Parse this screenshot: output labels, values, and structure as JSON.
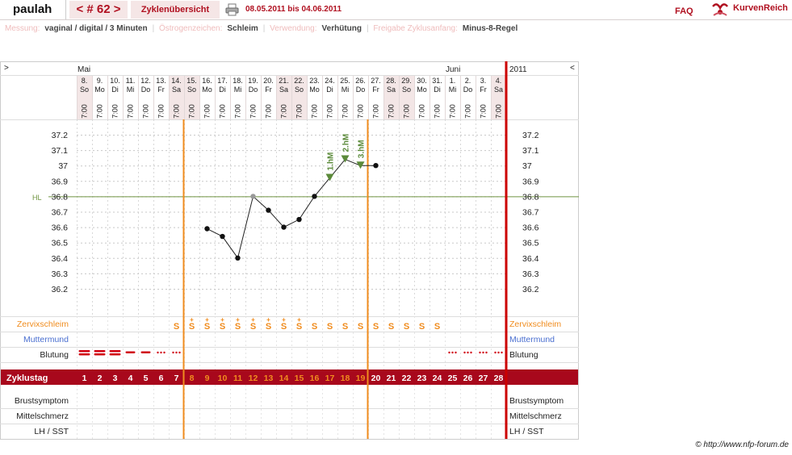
{
  "header": {
    "user": "paulah",
    "cycle_nav": "< # 62 >",
    "overview_label": "Zyklenübersicht",
    "date_range": "08.05.2011 bis 04.06.2011",
    "faq": "FAQ",
    "logo_text": "KurvenReich"
  },
  "settings": [
    {
      "label": "Messung:",
      "value": "vaginal / digital / 3 Minuten"
    },
    {
      "label": "Östrogenzeichen:",
      "value": "Schleim"
    },
    {
      "label": "Verwendung:",
      "value": "Verhütung"
    },
    {
      "label": "Freigabe Zyklusanfang:",
      "value": "Minus-8-Regel"
    }
  ],
  "chart_data": {
    "type": "line",
    "nav_left": ">",
    "nav_right": "<",
    "months": [
      {
        "label": "Mai",
        "day_index": 0
      },
      {
        "label": "Juni",
        "day_index": 24
      }
    ],
    "year": "2011",
    "dates": [
      "8.",
      "9.",
      "10.",
      "11.",
      "12.",
      "13.",
      "14.",
      "15.",
      "16.",
      "17.",
      "18.",
      "19.",
      "20.",
      "21.",
      "22.",
      "23.",
      "24.",
      "25.",
      "26.",
      "27.",
      "28.",
      "29.",
      "30.",
      "31.",
      "1.",
      "2.",
      "3.",
      "4."
    ],
    "weekdays": [
      "So",
      "Mo",
      "Di",
      "Mi",
      "Do",
      "Fr",
      "Sa",
      "So",
      "Mo",
      "Di",
      "Mi",
      "Do",
      "Fr",
      "Sa",
      "So",
      "Mo",
      "Di",
      "Mi",
      "Do",
      "Fr",
      "Sa",
      "So",
      "Mo",
      "Di",
      "Mi",
      "Do",
      "Fr",
      "Sa"
    ],
    "times": [
      "7:00",
      "7:00",
      "7:00",
      "7:00",
      "7:00",
      "7:00",
      "7:00",
      "7:00",
      "7:00",
      "7:00",
      "7:00",
      "7:00",
      "7:00",
      "7:00",
      "7:00",
      "7:00",
      "7:00",
      "7:00",
      "7:00",
      "7:00",
      "7:00",
      "7:00",
      "7:00",
      "7:00",
      "7:00",
      "7:00",
      "7:00",
      "7:00"
    ],
    "y_ticks": [
      "37.2",
      "37.1",
      "37",
      "36.9",
      "36.8",
      "36.7",
      "36.6",
      "36.5",
      "36.4",
      "36.3",
      "36.2"
    ],
    "ylim": [
      36.1,
      37.3
    ],
    "coverline": {
      "label": "HL",
      "value": 36.8
    },
    "temperatures": [
      {
        "day": 9,
        "value": 36.59
      },
      {
        "day": 10,
        "value": 36.54
      },
      {
        "day": 11,
        "value": 36.4
      },
      {
        "day": 12,
        "value": 36.8,
        "excluded": true
      },
      {
        "day": 13,
        "value": 36.71
      },
      {
        "day": 14,
        "value": 36.6
      },
      {
        "day": 15,
        "value": 36.65
      },
      {
        "day": 16,
        "value": 36.8
      },
      {
        "day": 17,
        "value": 36.92,
        "marker": "1.hM"
      },
      {
        "day": 18,
        "value": 37.04,
        "marker": "2.hM"
      },
      {
        "day": 19,
        "value": 37.0,
        "marker": "3.hM"
      },
      {
        "day": 20,
        "value": 37.0
      }
    ],
    "vertical_lines": [
      {
        "after_day": 7
      },
      {
        "after_day": 19
      }
    ],
    "rows": {
      "zervixschleim": "Zervixschleim",
      "muttermund": "Muttermund",
      "blutung": "Blutung",
      "zyklustag": "Zyklustag",
      "brustsymptom": "Brustsymptom",
      "mittelschmerz": "Mittelschmerz",
      "lh_sst": "LH / SST"
    },
    "mucus": [
      {
        "day": 7,
        "symbol": "S"
      },
      {
        "day": 8,
        "symbol": "S+"
      },
      {
        "day": 9,
        "symbol": "S+"
      },
      {
        "day": 10,
        "symbol": "S+"
      },
      {
        "day": 11,
        "symbol": "S+"
      },
      {
        "day": 12,
        "symbol": "S+"
      },
      {
        "day": 13,
        "symbol": "S+"
      },
      {
        "day": 14,
        "symbol": "S+"
      },
      {
        "day": 15,
        "symbol": "S+"
      },
      {
        "day": 16,
        "symbol": "S"
      },
      {
        "day": 17,
        "symbol": "S"
      },
      {
        "day": 18,
        "symbol": "S"
      },
      {
        "day": 19,
        "symbol": "S"
      },
      {
        "day": 20,
        "symbol": "S"
      },
      {
        "day": 21,
        "symbol": "S"
      },
      {
        "day": 22,
        "symbol": "S"
      },
      {
        "day": 23,
        "symbol": "S"
      },
      {
        "day": 24,
        "symbol": "S"
      }
    ],
    "bleeding": [
      {
        "day": 1,
        "level": "heavy"
      },
      {
        "day": 2,
        "level": "heavy"
      },
      {
        "day": 3,
        "level": "heavy"
      },
      {
        "day": 4,
        "level": "medium"
      },
      {
        "day": 5,
        "level": "medium"
      },
      {
        "day": 6,
        "level": "spotting"
      },
      {
        "day": 7,
        "level": "spotting"
      },
      {
        "day": 25,
        "level": "spotting"
      },
      {
        "day": 26,
        "level": "spotting"
      },
      {
        "day": 27,
        "level": "spotting"
      },
      {
        "day": 28,
        "level": "spotting"
      }
    ],
    "cycle_days": [
      "1",
      "2",
      "3",
      "4",
      "5",
      "6",
      "7",
      "8",
      "9",
      "10",
      "11",
      "12",
      "13",
      "14",
      "15",
      "16",
      "17",
      "18",
      "19",
      "20",
      "21",
      "22",
      "23",
      "24",
      "25",
      "26",
      "27",
      "28"
    ],
    "highlight_days": [
      8,
      19
    ],
    "colors": {
      "accent": "#b01020",
      "orange": "#f08c1e",
      "coverline": "#6f9440",
      "hm_marker": "#5b8a3a",
      "muttermund": "#4a6fd0",
      "weekend": "#f3e6e6",
      "grid": "#c8c8c8"
    }
  },
  "footer": {
    "copyright": "© http://www.nfp-forum.de"
  }
}
